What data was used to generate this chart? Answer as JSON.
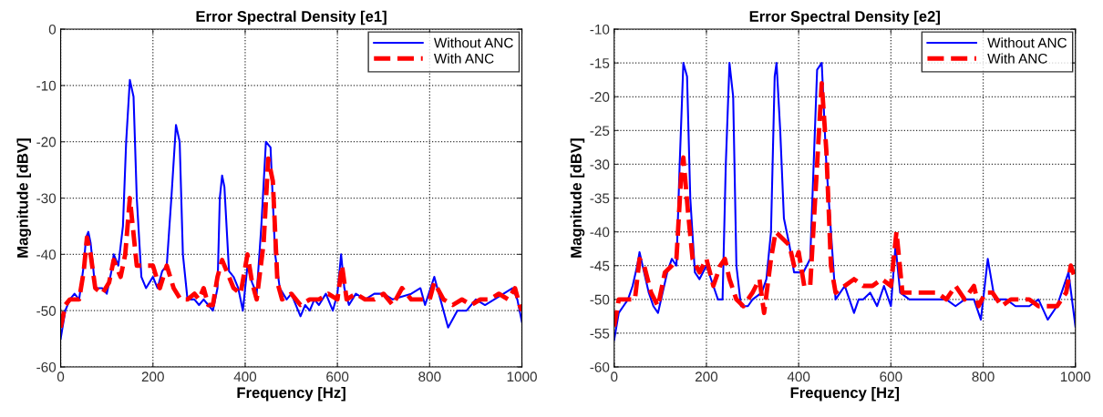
{
  "chart_data": [
    {
      "type": "line",
      "title": "Error Spectral Density [e1]",
      "xlabel": "Frequency [Hz]",
      "ylabel": "Magnitude [dBV]",
      "xlim": [
        0,
        1000
      ],
      "xticks": [
        0,
        200,
        400,
        600,
        800,
        1000
      ],
      "ylim": [
        -60,
        0
      ],
      "yticks": [
        -60,
        -50,
        -40,
        -30,
        -20,
        -10,
        0
      ],
      "grid": true,
      "legend": "top right",
      "series": [
        {
          "name": "Without ANC",
          "color": "#0000ff",
          "line_style": "solid",
          "x": [
            0,
            10,
            20,
            30,
            40,
            50,
            55,
            60,
            65,
            75,
            90,
            100,
            110,
            115,
            125,
            135,
            142,
            150,
            158,
            165,
            175,
            185,
            200,
            210,
            220,
            230,
            240,
            250,
            258,
            265,
            275,
            290,
            300,
            310,
            320,
            330,
            340,
            345,
            350,
            355,
            365,
            375,
            385,
            395,
            405,
            415,
            425,
            435,
            445,
            455,
            465,
            475,
            490,
            500,
            510,
            520,
            530,
            540,
            550,
            560,
            575,
            590,
            600,
            608,
            615,
            625,
            640,
            660,
            680,
            700,
            720,
            760,
            780,
            790,
            810,
            820,
            830,
            840,
            860,
            880,
            900,
            920,
            940,
            960,
            980,
            990,
            1000
          ],
          "values": [
            -55,
            -50,
            -48,
            -47,
            -48,
            -42,
            -37,
            -36,
            -38,
            -46,
            -46,
            -47,
            -43,
            -40,
            -42,
            -35,
            -20,
            -9,
            -12,
            -30,
            -44,
            -46,
            -44,
            -46,
            -43,
            -42,
            -30,
            -17,
            -20,
            -40,
            -48,
            -48,
            -49,
            -48,
            -49,
            -50,
            -46,
            -30,
            -26,
            -28,
            -43,
            -44,
            -46,
            -50,
            -42,
            -45,
            -47,
            -35,
            -20,
            -21,
            -40,
            -46,
            -48,
            -47,
            -49,
            -51,
            -49,
            -50,
            -48,
            -49,
            -47,
            -50,
            -47,
            -40,
            -46,
            -49,
            -47,
            -48,
            -47,
            -47,
            -48,
            -47,
            -46,
            -49,
            -44,
            -47,
            -50,
            -53,
            -50,
            -50,
            -48,
            -49,
            -48,
            -47,
            -46,
            -48,
            -52
          ]
        },
        {
          "name": "With ANC",
          "color": "#ff0000",
          "line_style": "dashed",
          "x": [
            0,
            10,
            20,
            40,
            50,
            57,
            65,
            75,
            90,
            105,
            115,
            130,
            140,
            150,
            160,
            165,
            180,
            200,
            215,
            230,
            245,
            260,
            275,
            290,
            300,
            310,
            320,
            330,
            340,
            350,
            360,
            375,
            390,
            405,
            415,
            425,
            440,
            450,
            460,
            470,
            480,
            500,
            520,
            540,
            560,
            580,
            600,
            610,
            620,
            640,
            660,
            680,
            700,
            720,
            740,
            760,
            780,
            800,
            810,
            830,
            850,
            870,
            890,
            910,
            930,
            950,
            970,
            985,
            995,
            1000
          ],
          "values": [
            -53,
            -49,
            -48,
            -48,
            -43,
            -37,
            -40,
            -46,
            -47,
            -45,
            -41,
            -44,
            -40,
            -30,
            -38,
            -42,
            -42,
            -42,
            -46,
            -42,
            -46,
            -48,
            -48,
            -47,
            -48,
            -46,
            -49,
            -49,
            -44,
            -41,
            -43,
            -46,
            -47,
            -40,
            -45,
            -48,
            -38,
            -23,
            -27,
            -45,
            -48,
            -47,
            -49,
            -48,
            -48,
            -47,
            -48,
            -42,
            -48,
            -47,
            -48,
            -48,
            -47,
            -49,
            -46,
            -48,
            -48,
            -48,
            -45,
            -48,
            -49,
            -48,
            -49,
            -48,
            -48,
            -47,
            -48,
            -46,
            -49,
            -50
          ]
        }
      ]
    },
    {
      "type": "line",
      "title": "Error Spectral Density [e2]",
      "xlabel": "Frequency [Hz]",
      "ylabel": "Magnitude [dBV]",
      "xlim": [
        0,
        1000
      ],
      "xticks": [
        0,
        200,
        400,
        600,
        800,
        1000
      ],
      "ylim": [
        -60,
        -10
      ],
      "yticks": [
        -60,
        -55,
        -50,
        -45,
        -40,
        -35,
        -30,
        -25,
        -20,
        -15,
        -10
      ],
      "grid": true,
      "legend": "top right",
      "series": [
        {
          "name": "Without ANC",
          "color": "#0000ff",
          "line_style": "solid",
          "x": [
            0,
            10,
            20,
            30,
            40,
            50,
            55,
            65,
            75,
            85,
            95,
            105,
            115,
            125,
            135,
            142,
            150,
            158,
            165,
            175,
            185,
            200,
            215,
            225,
            235,
            242,
            250,
            258,
            265,
            275,
            290,
            300,
            320,
            330,
            340,
            348,
            352,
            360,
            368,
            380,
            390,
            410,
            425,
            440,
            450,
            460,
            480,
            490,
            500,
            510,
            520,
            530,
            540,
            555,
            570,
            585,
            600,
            610,
            620,
            640,
            660,
            680,
            700,
            720,
            740,
            760,
            780,
            795,
            810,
            825,
            850,
            870,
            900,
            920,
            940,
            960,
            970,
            985,
            1000
          ],
          "values": [
            -56,
            -52,
            -51,
            -50,
            -48,
            -45,
            -43,
            -46,
            -49,
            -51,
            -52,
            -49,
            -46,
            -44,
            -45,
            -30,
            -15,
            -17,
            -35,
            -46,
            -47,
            -45,
            -48,
            -50,
            -50,
            -30,
            -15,
            -20,
            -45,
            -51,
            -51,
            -50,
            -49,
            -47,
            -40,
            -17,
            -15,
            -25,
            -38,
            -42,
            -46,
            -46,
            -44,
            -16,
            -15,
            -30,
            -50,
            -49,
            -48,
            -50,
            -52,
            -50,
            -50,
            -49,
            -51,
            -48,
            -51,
            -42,
            -49,
            -50,
            -50,
            -50,
            -50,
            -50,
            -51,
            -50,
            -50,
            -53,
            -44,
            -50,
            -50,
            -51,
            -51,
            -50,
            -53,
            -51,
            -49,
            -46,
            -54
          ]
        },
        {
          "name": "With ANC",
          "color": "#ff0000",
          "line_style": "dashed",
          "x": [
            0,
            10,
            30,
            45,
            55,
            65,
            80,
            95,
            110,
            125,
            135,
            145,
            150,
            160,
            170,
            185,
            200,
            215,
            230,
            240,
            250,
            265,
            280,
            300,
            315,
            325,
            340,
            350,
            365,
            380,
            390,
            400,
            412,
            425,
            440,
            450,
            460,
            470,
            480,
            500,
            520,
            540,
            560,
            580,
            600,
            612,
            625,
            640,
            660,
            680,
            700,
            720,
            740,
            760,
            780,
            790,
            805,
            820,
            840,
            860,
            880,
            900,
            920,
            940,
            960,
            980,
            990,
            1000
          ],
          "values": [
            -54,
            -50,
            -50,
            -50,
            -44,
            -45,
            -49,
            -51,
            -46,
            -45,
            -44,
            -32,
            -29,
            -37,
            -44,
            -46,
            -44,
            -48,
            -45,
            -44,
            -47,
            -50,
            -51,
            -49,
            -47,
            -52,
            -44,
            -40,
            -41,
            -42,
            -45,
            -43,
            -48,
            -48,
            -30,
            -18,
            -28,
            -45,
            -49,
            -48,
            -47,
            -48,
            -48,
            -47,
            -48,
            -40,
            -49,
            -49,
            -49,
            -49,
            -49,
            -50,
            -48,
            -50,
            -48,
            -51,
            -49,
            -49,
            -51,
            -50,
            -50,
            -50,
            -51,
            -51,
            -51,
            -49,
            -45,
            -47
          ]
        }
      ]
    }
  ]
}
